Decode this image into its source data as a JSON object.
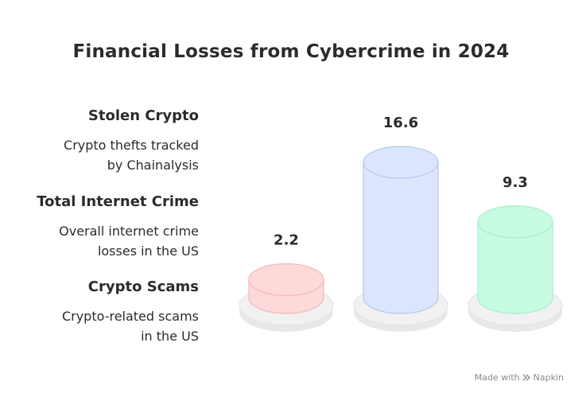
{
  "title": "Financial Losses from Cybercrime in 2024",
  "chart_data": {
    "type": "bar",
    "title": "Financial Losses from Cybercrime in 2024",
    "categories": [
      "Crypto Scams",
      "Total Internet Crime",
      "Stolen Crypto"
    ],
    "values": [
      2.2,
      16.6,
      9.3
    ],
    "xlabel": "",
    "ylabel": "",
    "ylim": [
      0,
      16.6
    ],
    "grid": false,
    "colors": {
      "Crypto Scams": "#fdd9d9",
      "Total Internet Crime": "#dbe6fd",
      "Stolen Crypto": "#c7fce3"
    }
  },
  "legend": [
    {
      "label": "Stolen Crypto",
      "desc_lines": [
        "Crypto thefts tracked",
        "by Chainalysis"
      ]
    },
    {
      "label": "Total Internet Crime",
      "desc_lines": [
        "Overall internet crime",
        "losses in the US"
      ]
    },
    {
      "label": "Crypto Scams",
      "desc_lines": [
        "Crypto-related scams",
        "in the US"
      ]
    }
  ],
  "footer": {
    "made_with": "Made with",
    "brand": "Napkin",
    "icon": "napkin-logo-icon"
  }
}
